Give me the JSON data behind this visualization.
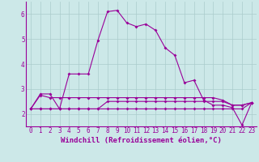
{
  "background_color": "#cce8e8",
  "line_color": "#990099",
  "grid_color": "#aacccc",
  "xlabel": "Windchill (Refroidissement éolien,°C)",
  "xlabel_color": "#990099",
  "xmin": -0.5,
  "xmax": 23.5,
  "ymin": 1.5,
  "ymax": 6.5,
  "yticks": [
    2,
    3,
    4,
    5,
    6
  ],
  "xticks": [
    0,
    1,
    2,
    3,
    4,
    5,
    6,
    7,
    8,
    9,
    10,
    11,
    12,
    13,
    14,
    15,
    16,
    17,
    18,
    19,
    20,
    21,
    22,
    23
  ],
  "series1_x": [
    0,
    1,
    2,
    3,
    4,
    5,
    6,
    7,
    8,
    9,
    10,
    11,
    12,
    13,
    14,
    15,
    16,
    17,
    18,
    19,
    20,
    21,
    22,
    23
  ],
  "series1_y": [
    2.2,
    2.8,
    2.8,
    2.2,
    3.6,
    3.6,
    3.6,
    4.95,
    6.1,
    6.15,
    5.65,
    5.5,
    5.6,
    5.35,
    4.65,
    4.35,
    3.25,
    3.35,
    2.55,
    2.35,
    2.35,
    2.25,
    1.55,
    2.45
  ],
  "series2_x": [
    0,
    1,
    2,
    3,
    4,
    5,
    6,
    7,
    8,
    9,
    10,
    11,
    12,
    13,
    14,
    15,
    16,
    17,
    18,
    19,
    20,
    21,
    22,
    23
  ],
  "series2_y": [
    2.2,
    2.75,
    2.65,
    2.65,
    2.65,
    2.65,
    2.65,
    2.65,
    2.65,
    2.65,
    2.65,
    2.65,
    2.65,
    2.65,
    2.65,
    2.65,
    2.65,
    2.65,
    2.65,
    2.65,
    2.55,
    2.35,
    2.35,
    2.45
  ],
  "series3_x": [
    0,
    1,
    2,
    3,
    4,
    5,
    6,
    7,
    8,
    9,
    10,
    11,
    12,
    13,
    14,
    15,
    16,
    17,
    18,
    19,
    20,
    21,
    22,
    23
  ],
  "series3_y": [
    2.2,
    2.2,
    2.2,
    2.2,
    2.2,
    2.2,
    2.2,
    2.2,
    2.2,
    2.2,
    2.2,
    2.2,
    2.2,
    2.2,
    2.2,
    2.2,
    2.2,
    2.2,
    2.2,
    2.2,
    2.2,
    2.2,
    2.2,
    2.45
  ],
  "series4_x": [
    0,
    1,
    2,
    3,
    4,
    5,
    6,
    7,
    8,
    9,
    10,
    11,
    12,
    13,
    14,
    15,
    16,
    17,
    18,
    19,
    20,
    21,
    22,
    23
  ],
  "series4_y": [
    2.2,
    2.2,
    2.2,
    2.2,
    2.2,
    2.2,
    2.2,
    2.2,
    2.5,
    2.5,
    2.5,
    2.5,
    2.5,
    2.5,
    2.5,
    2.5,
    2.5,
    2.5,
    2.5,
    2.5,
    2.5,
    2.35,
    2.35,
    2.45
  ],
  "tick_fontsize": 5.5,
  "label_fontsize": 6.5
}
